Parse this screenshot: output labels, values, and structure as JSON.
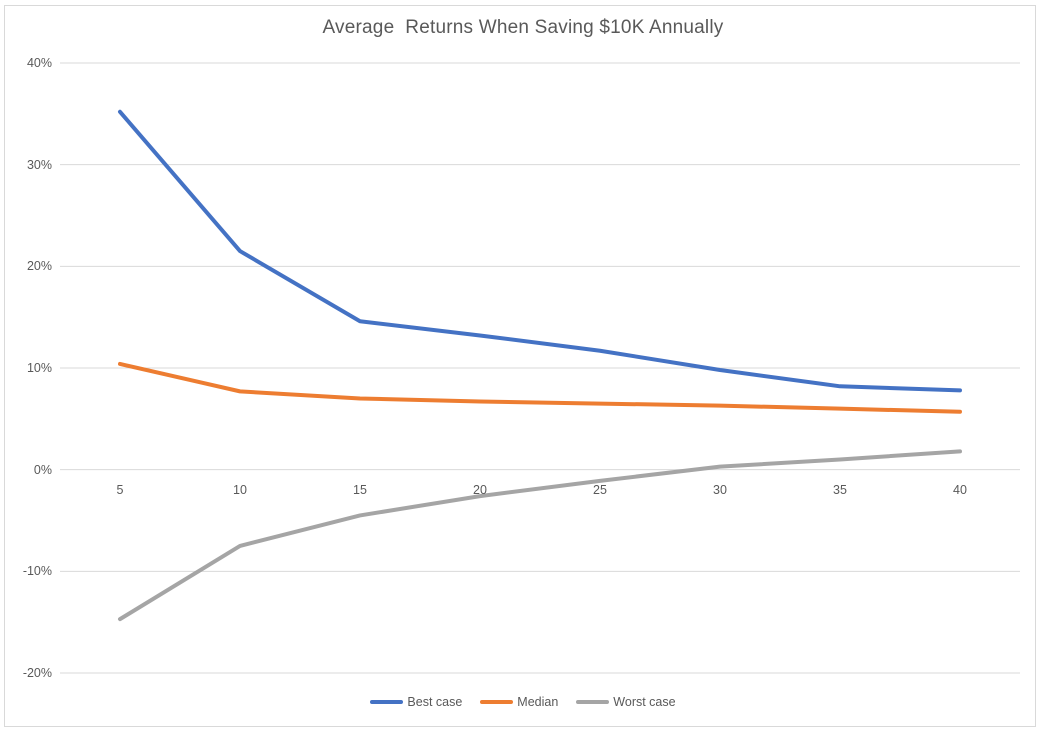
{
  "chart_data": {
    "type": "line",
    "title": "Average  Returns When Saving $10K Annually",
    "xlabel": "",
    "ylabel": "",
    "x": [
      5,
      10,
      15,
      20,
      25,
      30,
      35,
      40
    ],
    "x_tick_labels": [
      "5",
      "10",
      "15",
      "20",
      "25",
      "30",
      "35",
      "40"
    ],
    "y_ticks": [
      40,
      30,
      20,
      10,
      0,
      -10,
      -20
    ],
    "y_tick_labels": [
      "40%",
      "30%",
      "20%",
      "10%",
      "0%",
      "-10%",
      "-20%"
    ],
    "ylim": [
      -20,
      40
    ],
    "grid": true,
    "legend_position": "bottom",
    "series": [
      {
        "name": "Best case",
        "color": "#4472C4",
        "values": [
          35.2,
          21.5,
          14.6,
          13.2,
          11.7,
          9.8,
          8.2,
          7.8
        ]
      },
      {
        "name": "Median",
        "color": "#ED7D31",
        "values": [
          10.4,
          7.7,
          7.0,
          6.7,
          6.5,
          6.3,
          6.0,
          5.7
        ]
      },
      {
        "name": "Worst case",
        "color": "#A5A5A5",
        "values": [
          -14.7,
          -7.5,
          -4.5,
          -2.6,
          -1.1,
          0.3,
          1.0,
          1.8
        ]
      }
    ],
    "colors": {
      "title_text": "#595959",
      "axis_label_text": "#595959",
      "gridline": "#D9D9D9",
      "frame_border": "#D9D9D9",
      "background": "#FFFFFF"
    }
  }
}
